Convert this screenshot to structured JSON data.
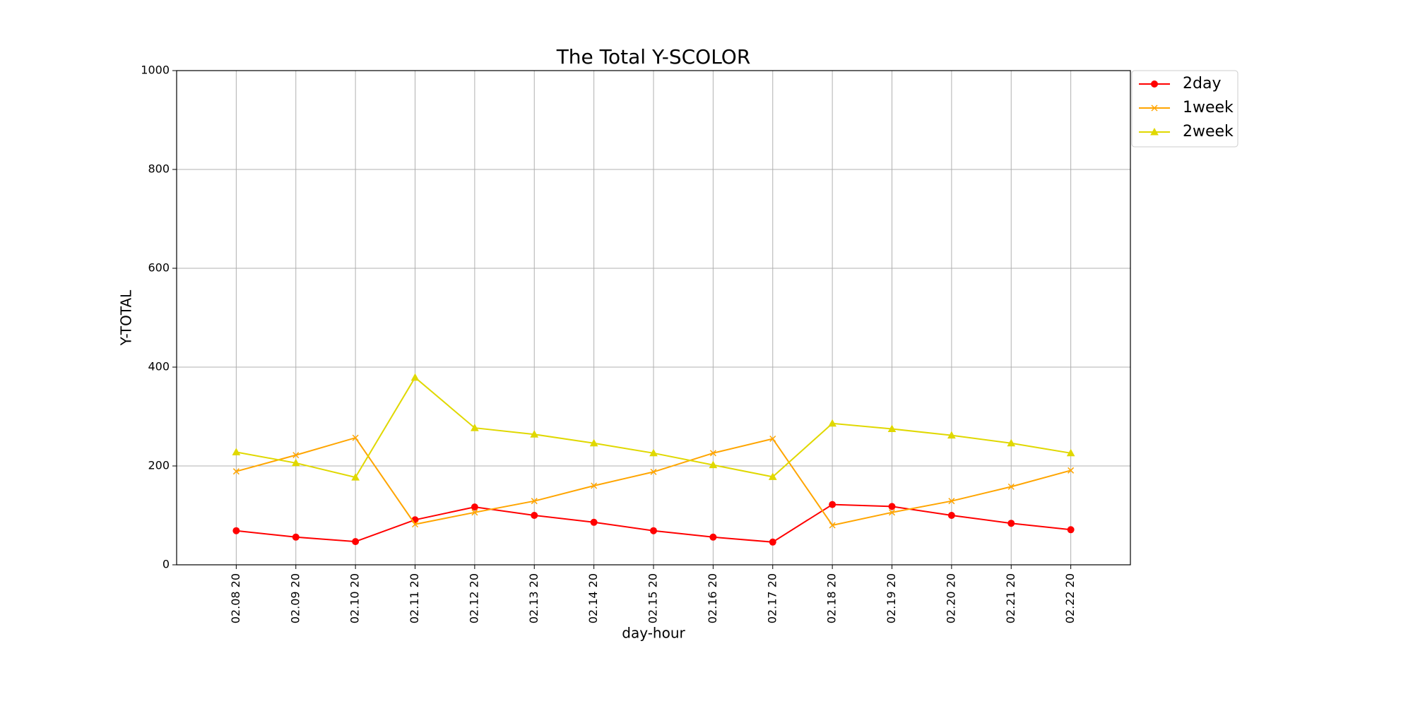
{
  "chart_data": {
    "type": "line",
    "title": "The Total Y-SCOLOR",
    "x_label": "day-hour",
    "y_label": "Y-TOTAL",
    "categories": [
      "02.08 20",
      "02.09 20",
      "02.10 20",
      "02.11 20",
      "02.12 20",
      "02.13 20",
      "02.14 20",
      "02.15 20",
      "02.16 20",
      "02.17 20",
      "02.18 20",
      "02.19 20",
      "02.20 20",
      "02.21 20",
      "02.22 20"
    ],
    "series": [
      {
        "name": "2day",
        "color": "#ff0000",
        "marker": "circle",
        "values": [
          69,
          56,
          47,
          91,
          117,
          100,
          86,
          69,
          56,
          46,
          122,
          118,
          100,
          84,
          71
        ]
      },
      {
        "name": "1week",
        "color": "#ffa500",
        "marker": "x",
        "values": [
          189,
          222,
          257,
          82,
          106,
          129,
          160,
          188,
          226,
          255,
          80,
          106,
          129,
          158,
          191
        ]
      },
      {
        "name": "2week",
        "color": "#e0d800",
        "marker": "triangle",
        "values": [
          228,
          206,
          177,
          379,
          277,
          264,
          246,
          226,
          202,
          178,
          286,
          275,
          262,
          246,
          226
        ]
      }
    ],
    "ylim": [
      0,
      1000
    ],
    "yticks": [
      0,
      200,
      400,
      600,
      800,
      1000
    ],
    "grid": true,
    "legend": "outside upper right"
  }
}
